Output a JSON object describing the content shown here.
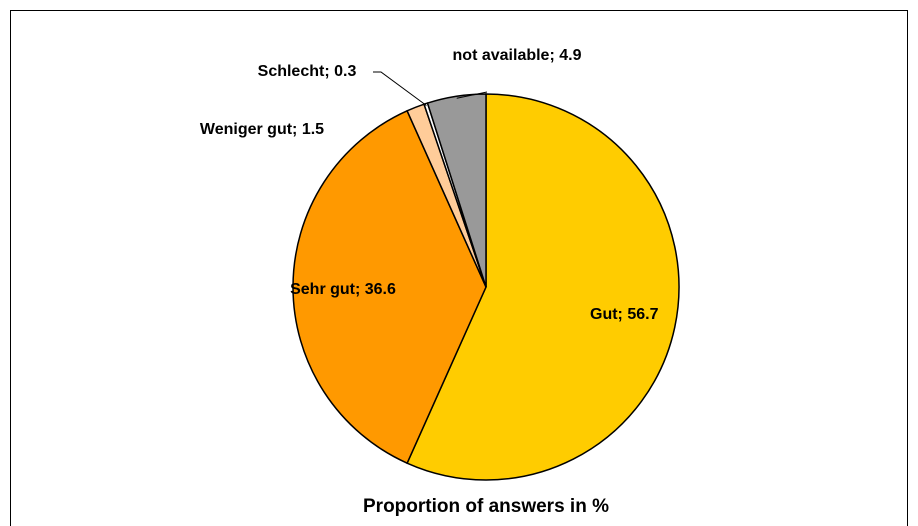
{
  "chart_data": {
    "type": "pie",
    "title": "Proportion of answers in %",
    "categories": [
      "Gut",
      "Sehr gut",
      "Weniger gut",
      "Schlecht",
      "not available"
    ],
    "values": [
      56.7,
      36.6,
      1.5,
      0.3,
      4.9
    ],
    "value_labels": [
      "Gut; 56.7",
      "Sehr gut; 36.6",
      "Weniger gut; 1.5",
      "Schlecht; 0.3",
      "not available; 4.9"
    ],
    "colors": [
      "#FFCC00",
      "#FF9900",
      "#FFCC99",
      "#FFFFFF",
      "#999999"
    ]
  }
}
